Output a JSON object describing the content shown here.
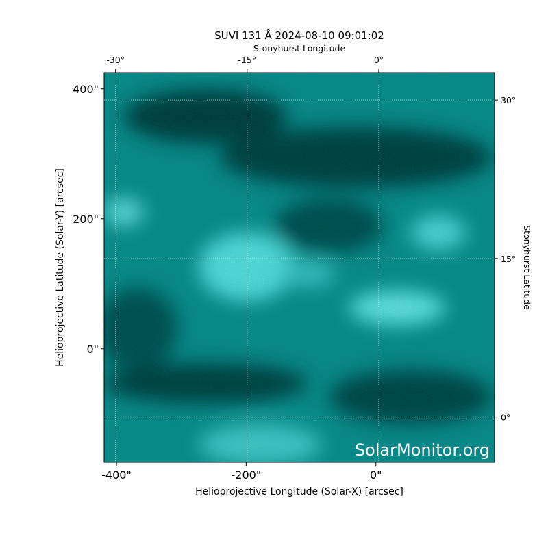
{
  "chart_data": {
    "type": "image",
    "title": "SUVI 131 Å 2024-08-10 09:01:02",
    "x_label": "Helioprojective Longitude (Solar-X) [arcsec]",
    "y_label": "Helioprojective Latitude (Solar-Y) [arcsec]",
    "x2_label": "Stonyhurst Longitude",
    "y2_label": "Stonyhurst Latitude",
    "watermark": "SolarMonitor.org",
    "xlim": [
      -419,
      183
    ],
    "ylim": [
      -175,
      425
    ],
    "xticks": [
      {
        "value": -400,
        "label": "-400\""
      },
      {
        "value": -200,
        "label": "-200\""
      },
      {
        "value": 0,
        "label": "0\""
      }
    ],
    "yticks": [
      {
        "value": 0,
        "label": "0\""
      },
      {
        "value": 200,
        "label": "200\""
      },
      {
        "value": 400,
        "label": "400\""
      }
    ],
    "x2lim": [
      -31.3,
      13.2
    ],
    "x2ticks": [
      {
        "value": -30,
        "label": "-30°"
      },
      {
        "value": -15,
        "label": "-15°"
      },
      {
        "value": 0,
        "label": "0°"
      }
    ],
    "y2lim": [
      -4.3,
      32.6
    ],
    "y2ticks": [
      {
        "value": 0,
        "label": "0°"
      },
      {
        "value": 15,
        "label": "15°"
      },
      {
        "value": 30,
        "label": "30°"
      }
    ],
    "grid": true
  }
}
